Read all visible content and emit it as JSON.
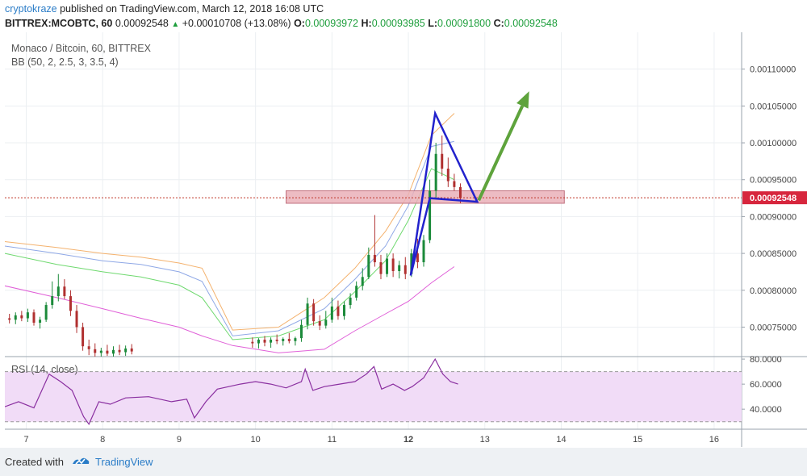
{
  "header": {
    "author": "cryptokraze",
    "published_text": " published on TradingView.com, March 12, 2018 16:08 UTC",
    "symbol": "BITTREX:MCOBTC, 60",
    "last_price": "0.00092548",
    "change": "+0.00010708 (+13.08%)",
    "o_label": "O:",
    "o_value": "0.00093972",
    "h_label": "H:",
    "h_value": "0.00093985",
    "l_label": "L:",
    "l_value": "0.00091800",
    "c_label": "C:",
    "c_value": "0.00092548"
  },
  "footer": {
    "created_with": "Created with",
    "brand": "TradingView"
  },
  "colors": {
    "up": "#1b8a3a",
    "down": "#b03030",
    "bb_upper": "#f4b26e",
    "bb_inner": "#8fa8e6",
    "bb_lower": "#6fd96f",
    "bb_basis": "#e060d8",
    "rsi": "#8a2fa0",
    "rsi_band": "#f1dcf7",
    "pattern": "#2222cc",
    "arrow": "#5ea33c",
    "zone_fill": "#eab0b8",
    "zone_stroke": "#c0707e",
    "price_line": "#c0392b"
  },
  "chart_data": {
    "type": "candlestick",
    "title": "Monaco / Bitcoin, 60, BITTREX",
    "indicator": "BB (50, 2, 2.5, 3, 3.5, 4)",
    "rsi_label": "RSI (14, close)",
    "x_ticks": [
      "7",
      "8",
      "9",
      "10",
      "11",
      "12",
      "13",
      "14",
      "15",
      "16"
    ],
    "y_ticks": [
      "0.00075000",
      "0.00080000",
      "0.00085000",
      "0.00090000",
      "0.00095000",
      "0.00100000",
      "0.00105000",
      "0.00110000"
    ],
    "rsi_ticks": [
      "40.0000",
      "60.0000",
      "80.0000"
    ],
    "ylim": [
      0.00071,
      0.00115
    ],
    "xlim": [
      6.72,
      16.36
    ],
    "rsi_ylim": [
      24,
      82
    ],
    "rsi_band": [
      30,
      70
    ],
    "current_price_label": "0.00092548",
    "current_price": 0.00092548,
    "candles": [
      {
        "t": 6.78,
        "o": 0.000762,
        "h": 0.000768,
        "l": 0.000755,
        "c": 0.00076
      },
      {
        "t": 6.86,
        "o": 0.00076,
        "h": 0.00077,
        "l": 0.000754,
        "c": 0.000766
      },
      {
        "t": 6.94,
        "o": 0.000766,
        "h": 0.000772,
        "l": 0.000758,
        "c": 0.000762
      },
      {
        "t": 7.02,
        "o": 0.000762,
        "h": 0.000775,
        "l": 0.000757,
        "c": 0.00077
      },
      {
        "t": 7.1,
        "o": 0.00077,
        "h": 0.000774,
        "l": 0.000752,
        "c": 0.000756
      },
      {
        "t": 7.18,
        "o": 0.000756,
        "h": 0.000764,
        "l": 0.000748,
        "c": 0.00076
      },
      {
        "t": 7.26,
        "o": 0.00076,
        "h": 0.000784,
        "l": 0.000757,
        "c": 0.00078
      },
      {
        "t": 7.34,
        "o": 0.00078,
        "h": 0.000812,
        "l": 0.000775,
        "c": 0.000792
      },
      {
        "t": 7.42,
        "o": 0.000792,
        "h": 0.000822,
        "l": 0.000785,
        "c": 0.000805
      },
      {
        "t": 7.5,
        "o": 0.000805,
        "h": 0.000815,
        "l": 0.000788,
        "c": 0.000792
      },
      {
        "t": 7.58,
        "o": 0.000792,
        "h": 0.0008,
        "l": 0.000765,
        "c": 0.000772
      },
      {
        "t": 7.66,
        "o": 0.000772,
        "h": 0.00078,
        "l": 0.000742,
        "c": 0.00075
      },
      {
        "t": 7.74,
        "o": 0.00075,
        "h": 0.000756,
        "l": 0.000718,
        "c": 0.000724
      },
      {
        "t": 7.82,
        "o": 0.000724,
        "h": 0.000733,
        "l": 0.000712,
        "c": 0.00072
      },
      {
        "t": 7.9,
        "o": 0.00072,
        "h": 0.000728,
        "l": 0.00071,
        "c": 0.000715
      },
      {
        "t": 7.98,
        "o": 0.000715,
        "h": 0.000722,
        "l": 0.00071,
        "c": 0.000718
      },
      {
        "t": 8.06,
        "o": 0.000718,
        "h": 0.000726,
        "l": 0.000711,
        "c": 0.000714
      },
      {
        "t": 8.14,
        "o": 0.000714,
        "h": 0.000724,
        "l": 0.00071,
        "c": 0.000719
      },
      {
        "t": 8.22,
        "o": 0.000719,
        "h": 0.000726,
        "l": 0.000712,
        "c": 0.000716
      },
      {
        "t": 8.3,
        "o": 0.000716,
        "h": 0.000725,
        "l": 0.000711,
        "c": 0.000721
      },
      {
        "t": 8.38,
        "o": 0.000721,
        "h": 0.000727,
        "l": 0.000713,
        "c": 0.000717
      },
      {
        "t": 9.96,
        "o": 0.00073,
        "h": 0.000736,
        "l": 0.000722,
        "c": 0.000728
      },
      {
        "t": 10.04,
        "o": 0.000728,
        "h": 0.000735,
        "l": 0.000721,
        "c": 0.000733
      },
      {
        "t": 10.12,
        "o": 0.000733,
        "h": 0.000738,
        "l": 0.000724,
        "c": 0.000729
      },
      {
        "t": 10.2,
        "o": 0.000729,
        "h": 0.000736,
        "l": 0.000722,
        "c": 0.000733
      },
      {
        "t": 10.28,
        "o": 0.000733,
        "h": 0.00074,
        "l": 0.000727,
        "c": 0.000731
      },
      {
        "t": 10.36,
        "o": 0.000731,
        "h": 0.000736,
        "l": 0.000725,
        "c": 0.000734
      },
      {
        "t": 10.44,
        "o": 0.000734,
        "h": 0.000742,
        "l": 0.000728,
        "c": 0.000731
      },
      {
        "t": 10.52,
        "o": 0.000731,
        "h": 0.000737,
        "l": 0.000725,
        "c": 0.000735
      },
      {
        "t": 10.6,
        "o": 0.000735,
        "h": 0.00076,
        "l": 0.00073,
        "c": 0.000753
      },
      {
        "t": 10.68,
        "o": 0.000753,
        "h": 0.00079,
        "l": 0.000747,
        "c": 0.000782
      },
      {
        "t": 10.76,
        "o": 0.000782,
        "h": 0.000788,
        "l": 0.000752,
        "c": 0.000758
      },
      {
        "t": 10.84,
        "o": 0.000758,
        "h": 0.000766,
        "l": 0.000746,
        "c": 0.000752
      },
      {
        "t": 10.92,
        "o": 0.000752,
        "h": 0.000772,
        "l": 0.000748,
        "c": 0.00076
      },
      {
        "t": 11.0,
        "o": 0.00076,
        "h": 0.00079,
        "l": 0.000756,
        "c": 0.000778
      },
      {
        "t": 11.08,
        "o": 0.000778,
        "h": 0.000786,
        "l": 0.00076,
        "c": 0.000765
      },
      {
        "t": 11.16,
        "o": 0.000765,
        "h": 0.000785,
        "l": 0.00076,
        "c": 0.00078
      },
      {
        "t": 11.24,
        "o": 0.00078,
        "h": 0.000796,
        "l": 0.000775,
        "c": 0.00079
      },
      {
        "t": 11.32,
        "o": 0.00079,
        "h": 0.000812,
        "l": 0.000786,
        "c": 0.000806
      },
      {
        "t": 11.4,
        "o": 0.000806,
        "h": 0.00083,
        "l": 0.0008,
        "c": 0.000818
      },
      {
        "t": 11.48,
        "o": 0.000818,
        "h": 0.000858,
        "l": 0.000815,
        "c": 0.000848
      },
      {
        "t": 11.56,
        "o": 0.000848,
        "h": 0.000902,
        "l": 0.000832,
        "c": 0.000838
      },
      {
        "t": 11.64,
        "o": 0.000838,
        "h": 0.000848,
        "l": 0.000815,
        "c": 0.000822
      },
      {
        "t": 11.72,
        "o": 0.000822,
        "h": 0.00085,
        "l": 0.000818,
        "c": 0.000843
      },
      {
        "t": 11.8,
        "o": 0.000843,
        "h": 0.00085,
        "l": 0.000818,
        "c": 0.000826
      },
      {
        "t": 11.88,
        "o": 0.000826,
        "h": 0.00084,
        "l": 0.000816,
        "c": 0.000834
      },
      {
        "t": 11.96,
        "o": 0.000834,
        "h": 0.000845,
        "l": 0.000815,
        "c": 0.000822
      },
      {
        "t": 12.04,
        "o": 0.000822,
        "h": 0.000856,
        "l": 0.000818,
        "c": 0.00085
      },
      {
        "t": 12.12,
        "o": 0.00085,
        "h": 0.00087,
        "l": 0.00083,
        "c": 0.000838
      },
      {
        "t": 12.2,
        "o": 0.000838,
        "h": 0.000875,
        "l": 0.000832,
        "c": 0.000868
      },
      {
        "t": 12.28,
        "o": 0.000868,
        "h": 0.00095,
        "l": 0.000864,
        "c": 0.000935
      },
      {
        "t": 12.36,
        "o": 0.000935,
        "h": 0.001,
        "l": 0.000925,
        "c": 0.000985
      },
      {
        "t": 12.44,
        "o": 0.000985,
        "h": 0.00101,
        "l": 0.000955,
        "c": 0.000965
      },
      {
        "t": 12.52,
        "o": 0.000965,
        "h": 0.00098,
        "l": 0.00094,
        "c": 0.000948
      },
      {
        "t": 12.6,
        "o": 0.000948,
        "h": 0.000958,
        "l": 0.000935,
        "c": 0.00094
      },
      {
        "t": 12.68,
        "o": 0.00094,
        "h": 0.000945,
        "l": 0.000918,
        "c": 0.000925
      }
    ],
    "bollinger": {
      "x": [
        6.72,
        7.4,
        8.0,
        8.5,
        9.0,
        9.3,
        9.7,
        10.3,
        10.9,
        11.3,
        11.7,
        12.0,
        12.3,
        12.6
      ],
      "upper": [
        0.000866,
        0.000858,
        0.00085,
        0.000845,
        0.000837,
        0.00083,
        0.000746,
        0.00075,
        0.00079,
        0.00083,
        0.00088,
        0.00093,
        0.00101,
        0.00104
      ],
      "inner": [
        0.00086,
        0.00085,
        0.00084,
        0.000835,
        0.000825,
        0.000812,
        0.000738,
        0.000745,
        0.000775,
        0.000815,
        0.00086,
        0.000915,
        0.000995,
        0.001002
      ],
      "lower": [
        0.00085,
        0.000835,
        0.000825,
        0.000818,
        0.000807,
        0.00079,
        0.000733,
        0.000738,
        0.00076,
        0.000798,
        0.00084,
        0.000895,
        0.000965,
        0.00095
      ],
      "basis": [
        0.000806,
        0.00079,
        0.000775,
        0.000762,
        0.00075,
        0.000738,
        0.000725,
        0.000715,
        0.00072,
        0.000745,
        0.000768,
        0.000785,
        0.00081,
        0.000832
      ]
    },
    "rsi": {
      "x": [
        6.72,
        6.9,
        7.1,
        7.3,
        7.45,
        7.6,
        7.75,
        7.82,
        7.95,
        8.1,
        8.3,
        8.6,
        8.9,
        9.1,
        9.2,
        9.35,
        9.5,
        9.65,
        9.8,
        10.0,
        10.2,
        10.4,
        10.6,
        10.65,
        10.75,
        10.9,
        11.1,
        11.3,
        11.45,
        11.55,
        11.65,
        11.8,
        11.95,
        12.05,
        12.2,
        12.35,
        12.45,
        12.55,
        12.65
      ],
      "values": [
        42,
        46,
        41,
        68,
        62,
        55,
        34,
        28,
        46,
        44,
        49,
        50,
        46,
        48,
        33,
        46,
        56,
        58,
        60,
        62,
        60,
        57,
        62,
        72,
        55,
        58,
        60,
        62,
        68,
        74,
        56,
        60,
        55,
        58,
        65,
        80,
        68,
        62,
        60
      ]
    },
    "annotations": {
      "support_zone": {
        "x1": 10.4,
        "x2": 14.04,
        "y1": 0.000935,
        "y2": 0.000918
      },
      "triangle": [
        [
          12.03,
          0.00082
        ],
        [
          12.35,
          0.00104
        ],
        [
          12.9,
          0.00092
        ],
        [
          12.28,
          0.000925
        ]
      ],
      "arrow": {
        "from": [
          12.92,
          0.000922
        ],
        "to": [
          13.58,
          0.00107
        ]
      }
    }
  }
}
